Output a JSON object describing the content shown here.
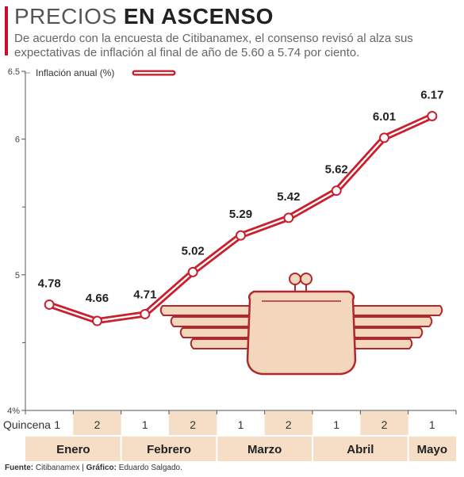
{
  "header": {
    "title_light": "PRECIOS",
    "title_bold": "EN ASCENSO",
    "subtitle": "De acuerdo con la encuesta de Citibanamex, el consenso revisó al alza sus expectativas de inflación al final de año de 5.60 a 5.74 por ciento."
  },
  "footer": {
    "source_label": "Fuente:",
    "source": "Citibanamex",
    "separator": "|",
    "graphic_label": "Gráfico:",
    "graphic": "Eduardo Salgado."
  },
  "chart_data": {
    "type": "line",
    "title": "PRECIOS EN ASCENSO",
    "xlabel": "Quincena",
    "ylabel": "",
    "ylim": [
      4,
      6.5
    ],
    "yticks": [
      "4%",
      "5",
      "6",
      "6.5"
    ],
    "categories": [
      "1",
      "2",
      "1",
      "2",
      "1",
      "2",
      "1",
      "2",
      "1"
    ],
    "months": [
      {
        "label": "Enero",
        "span": 2
      },
      {
        "label": "Febrero",
        "span": 2
      },
      {
        "label": "Marzo",
        "span": 2
      },
      {
        "label": "Abril",
        "span": 2
      },
      {
        "label": "Mayo",
        "span": 1
      }
    ],
    "series": [
      {
        "name": "Inflación anual (%)",
        "values": [
          4.78,
          4.66,
          4.71,
          5.02,
          5.29,
          5.42,
          5.62,
          6.01,
          6.17
        ]
      }
    ],
    "data_labels": [
      "4.78",
      "4.66",
      "4.71",
      "5.02",
      "5.29",
      "5.42",
      "5.62",
      "6.01",
      "6.17"
    ],
    "legend_position": "top-left",
    "grid": false,
    "colors": {
      "line": "#cc1f2d",
      "shade": "#f5ddc6",
      "illustration_fill": "#f3d7bc",
      "illustration_stroke": "#b0282c"
    }
  }
}
